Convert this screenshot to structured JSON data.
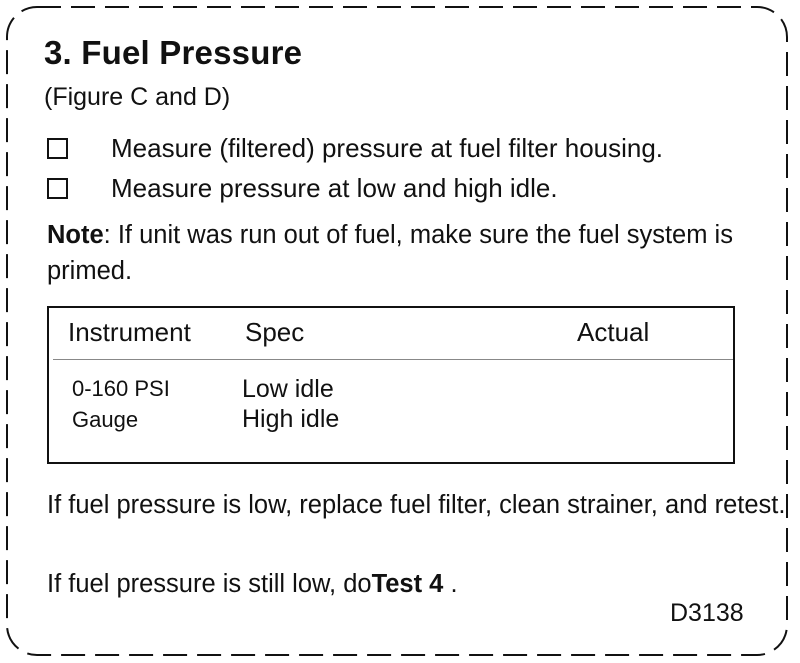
{
  "section": {
    "title": "3. Fuel Pressure",
    "figure_ref": "(Figure C and D)"
  },
  "checklist": [
    {
      "label": "Measure (filtered) pressure at fuel filter housing.",
      "checked": false
    },
    {
      "label": "Measure pressure at low and high idle.",
      "checked": false
    }
  ],
  "note": {
    "heading": "Note",
    "text": ": If unit was run out of fuel, make sure the fuel system is primed."
  },
  "spec_table": {
    "headers": [
      "Instrument",
      "Spec",
      "Actual"
    ],
    "rows": [
      {
        "instrument": "0-160 PSI",
        "spec": "Low idle",
        "actual": ""
      },
      {
        "instrument": "Gauge",
        "spec": "High idle",
        "actual": ""
      }
    ]
  },
  "instructions": {
    "low_pressure": "If fuel pressure is  low, replace fuel filter, clean strainer, and retest.",
    "still_low_prefix": "If fuel pressure is still low, do",
    "still_low_link": "Test 4",
    "still_low_suffix": " ."
  },
  "document_id": "D3138",
  "colors": {
    "text": "#111111",
    "border": "#111111",
    "table_rule": "#888888",
    "background": "#ffffff"
  }
}
